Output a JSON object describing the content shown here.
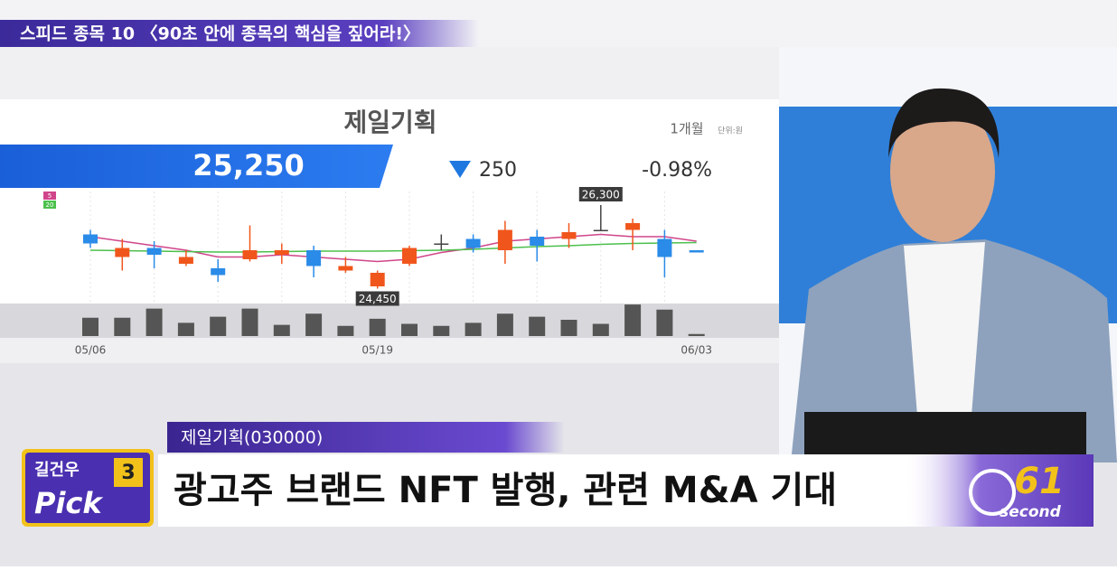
{
  "header": {
    "segment": "스피드 종목 10 〈90초 안에 종목의 핵심을 짚어라!〉"
  },
  "quote": {
    "name": "제일기획",
    "period": "1개월",
    "unit": "단위:원",
    "price": "25,250",
    "change": "250",
    "change_pct": "-0.98%"
  },
  "chart_data": {
    "type": "candlestick",
    "categories": [
      "05/06",
      null,
      null,
      null,
      null,
      null,
      null,
      null,
      null,
      "05/19",
      null,
      null,
      null,
      null,
      null,
      null,
      null,
      null,
      null,
      "06/03"
    ],
    "open": [
      25650,
      25150,
      25350,
      25000,
      24900,
      25100,
      25200,
      25300,
      24850,
      24500,
      25000,
      25450,
      25550,
      25300,
      25600,
      25550,
      25750,
      25750,
      25550,
      25300
    ],
    "high": [
      25750,
      25550,
      25500,
      25300,
      25100,
      25850,
      25450,
      25400,
      25150,
      24850,
      25400,
      25650,
      25650,
      25950,
      25750,
      25900,
      26300,
      26000,
      25750,
      25300
    ],
    "low": [
      25350,
      24850,
      24900,
      24950,
      24600,
      25050,
      25000,
      24700,
      24800,
      24450,
      24950,
      25300,
      25250,
      25000,
      25050,
      25350,
      25750,
      25300,
      24700,
      25250
    ],
    "close": [
      25450,
      25350,
      25200,
      25150,
      24750,
      25300,
      25300,
      24950,
      24950,
      24800,
      25350,
      25450,
      25350,
      25750,
      25400,
      25700,
      25750,
      25900,
      25150,
      25250
    ],
    "ylim": [
      24200,
      26600
    ],
    "up_color": "#f0561c",
    "down_color": "#2a8be8",
    "flat_color": "#444444",
    "series": [
      {
        "name": "5",
        "color": "#d0458a",
        "values": [
          25600,
          25500,
          25400,
          25300,
          25150,
          25150,
          25200,
          25150,
          25100,
          25050,
          25100,
          25250,
          25350,
          25500,
          25550,
          25600,
          25650,
          25600,
          25600,
          25500
        ]
      },
      {
        "name": "20",
        "color": "#4cc04c",
        "values": [
          25300,
          25290,
          25280,
          25270,
          25260,
          25260,
          25270,
          25280,
          25280,
          25280,
          25290,
          25300,
          25320,
          25350,
          25380,
          25400,
          25430,
          25450,
          25460,
          25470
        ]
      }
    ],
    "annotations": [
      {
        "value": 26300,
        "label": "26,300"
      },
      {
        "value": 24450,
        "label": "24,450"
      }
    ],
    "volumes": [
      18,
      18,
      27,
      13,
      19,
      27,
      11,
      22,
      10,
      17,
      12,
      10,
      13,
      22,
      19,
      16,
      12,
      31,
      26,
      2
    ],
    "vlim": [
      0,
      32
    ],
    "volume_color": "#555555"
  },
  "lower_third": {
    "tag": "제일기획(030000)",
    "headline": "광고주 브랜드 NFT 발행, 관련 M&A 기대",
    "logo_top": "길건우",
    "logo_num": "3",
    "logo_main": "Pick",
    "timer_num": "61",
    "timer_word": "second"
  }
}
